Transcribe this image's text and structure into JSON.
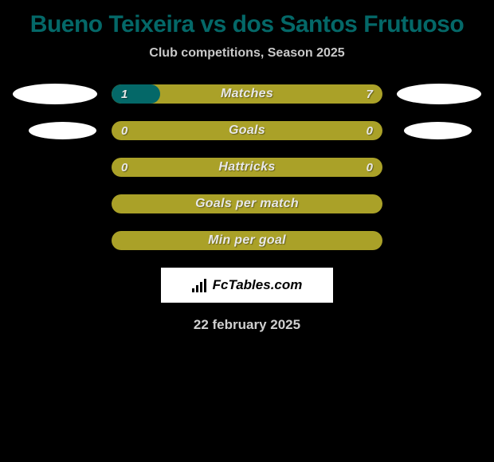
{
  "title": "Bueno Teixeira vs dos Santos Frutuoso",
  "subtitle": "Club competitions, Season 2025",
  "date": "22 february 2025",
  "logo_text": "FcTables.com",
  "colors": {
    "background": "#000000",
    "title": "#046868",
    "bar_base": "#aaa128",
    "bar_fill": "#046868",
    "text_light": "#e8e8e8",
    "avatar": "#ffffff"
  },
  "stats": [
    {
      "label": "Matches",
      "left_value": "1",
      "right_value": "7",
      "left_pct": 18,
      "show_values": true,
      "show_avatar": true,
      "avatar_size": "large"
    },
    {
      "label": "Goals",
      "left_value": "0",
      "right_value": "0",
      "left_pct": 0,
      "show_values": true,
      "show_avatar": true,
      "avatar_size": "small"
    },
    {
      "label": "Hattricks",
      "left_value": "0",
      "right_value": "0",
      "left_pct": 0,
      "show_values": true,
      "show_avatar": false
    },
    {
      "label": "Goals per match",
      "left_value": "",
      "right_value": "",
      "left_pct": 0,
      "show_values": false,
      "show_avatar": false
    },
    {
      "label": "Min per goal",
      "left_value": "",
      "right_value": "",
      "left_pct": 0,
      "show_values": false,
      "show_avatar": false
    }
  ]
}
